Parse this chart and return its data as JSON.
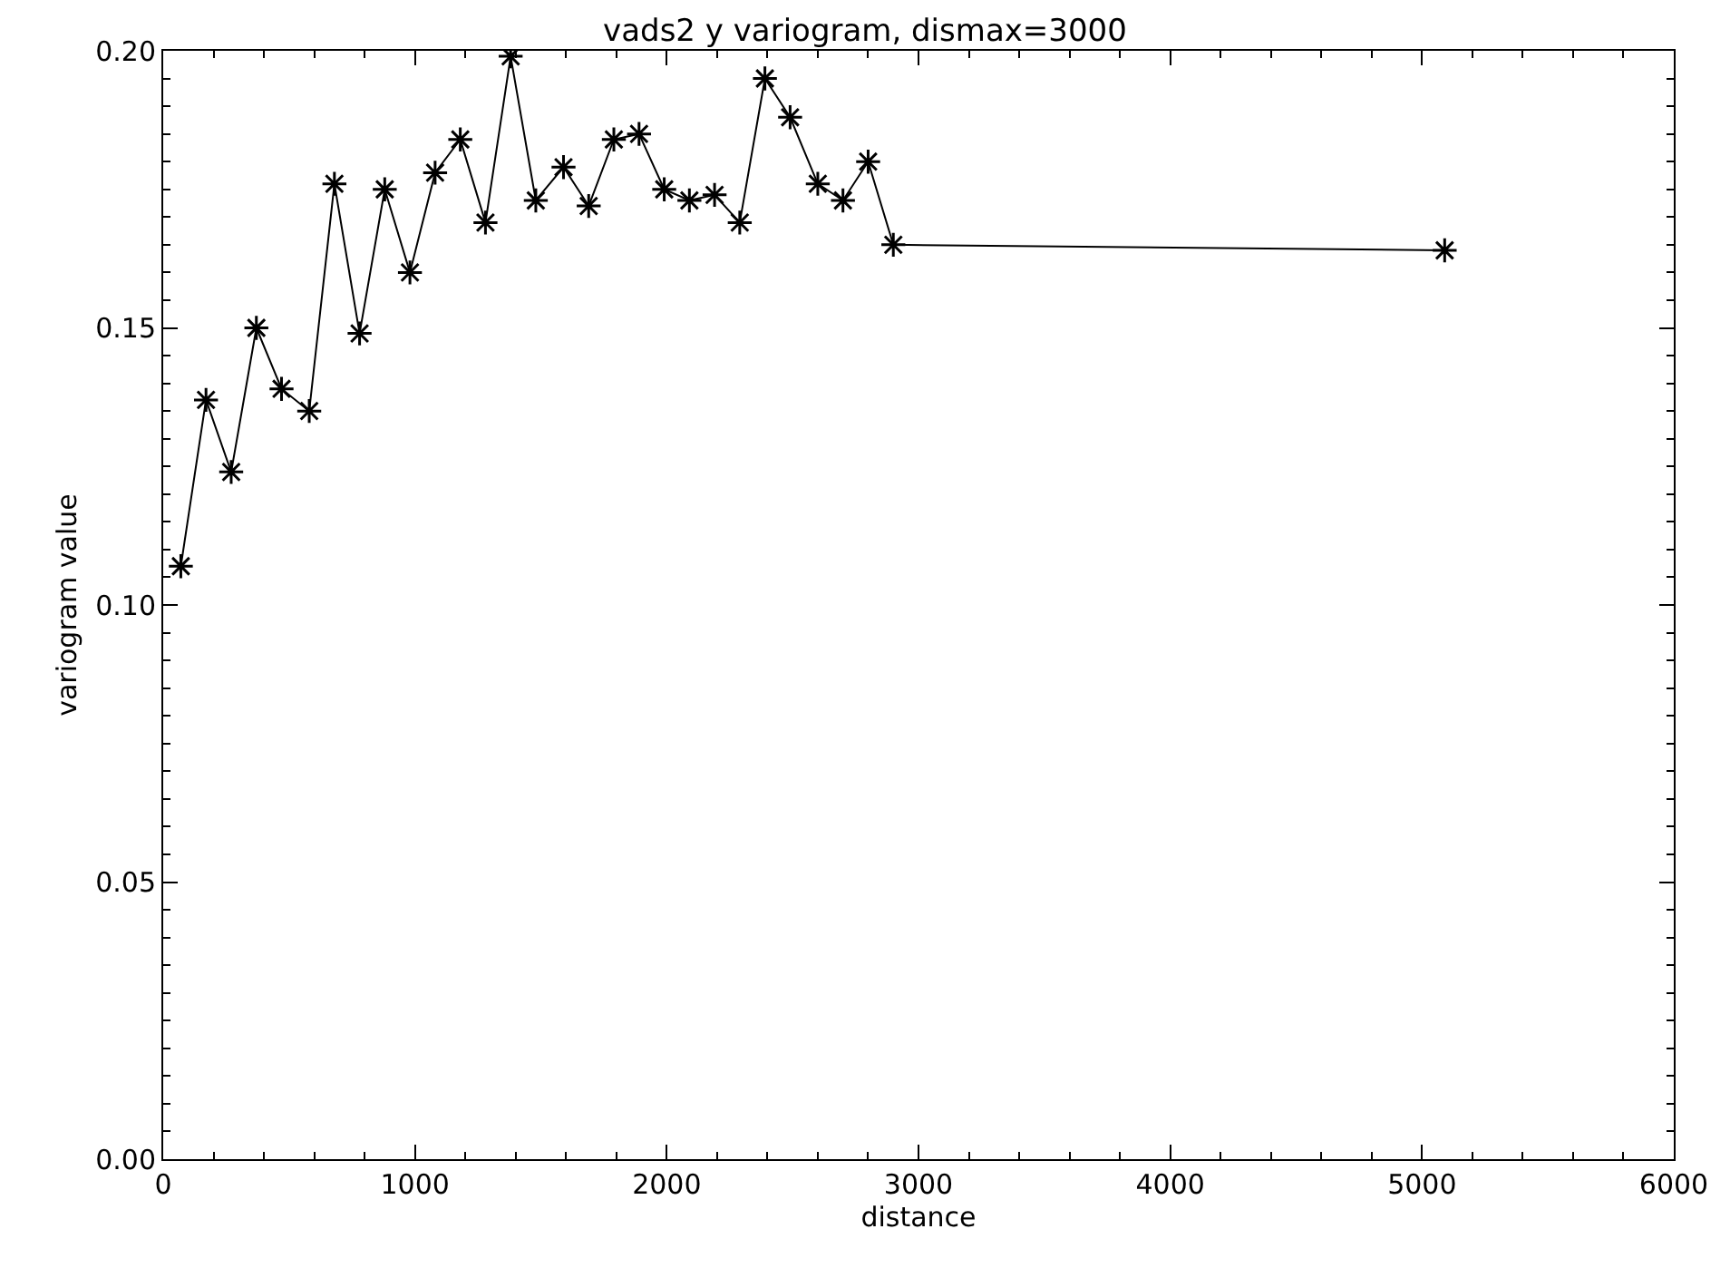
{
  "chart_data": {
    "type": "line",
    "title": "vads2 y variogram, dismax=3000",
    "xlabel": "distance",
    "ylabel": "variogram value",
    "x": [
      70,
      170,
      270,
      370,
      470,
      580,
      680,
      780,
      880,
      980,
      1080,
      1180,
      1280,
      1380,
      1480,
      1590,
      1690,
      1790,
      1890,
      1990,
      2090,
      2190,
      2290,
      2390,
      2490,
      2600,
      2700,
      2800,
      2900,
      5090
    ],
    "series": [
      {
        "color": "#000000",
        "values": [
          0.107,
          0.137,
          0.124,
          0.15,
          0.139,
          0.135,
          0.176,
          0.149,
          0.175,
          0.16,
          0.178,
          0.184,
          0.169,
          0.199,
          0.173,
          0.179,
          0.172,
          0.184,
          0.185,
          0.175,
          0.173,
          0.174,
          0.169,
          0.195,
          0.188,
          0.176,
          0.173,
          0.18,
          0.165,
          0.164
        ]
      }
    ],
    "xlim": [
      0,
      6000
    ],
    "xticks": [
      0,
      1000,
      2000,
      3000,
      4000,
      5000,
      6000
    ],
    "ylim": [
      0,
      0.2
    ],
    "yticks": [
      {
        "value": 0,
        "label": "0.00"
      },
      {
        "value": 0.05,
        "label": "0.05"
      },
      {
        "value": 0.1,
        "label": "0.10"
      },
      {
        "value": 0.15,
        "label": "0.15"
      },
      {
        "value": 0.2,
        "label": "0.20"
      }
    ],
    "marker": "cross",
    "line_style": "solid"
  }
}
